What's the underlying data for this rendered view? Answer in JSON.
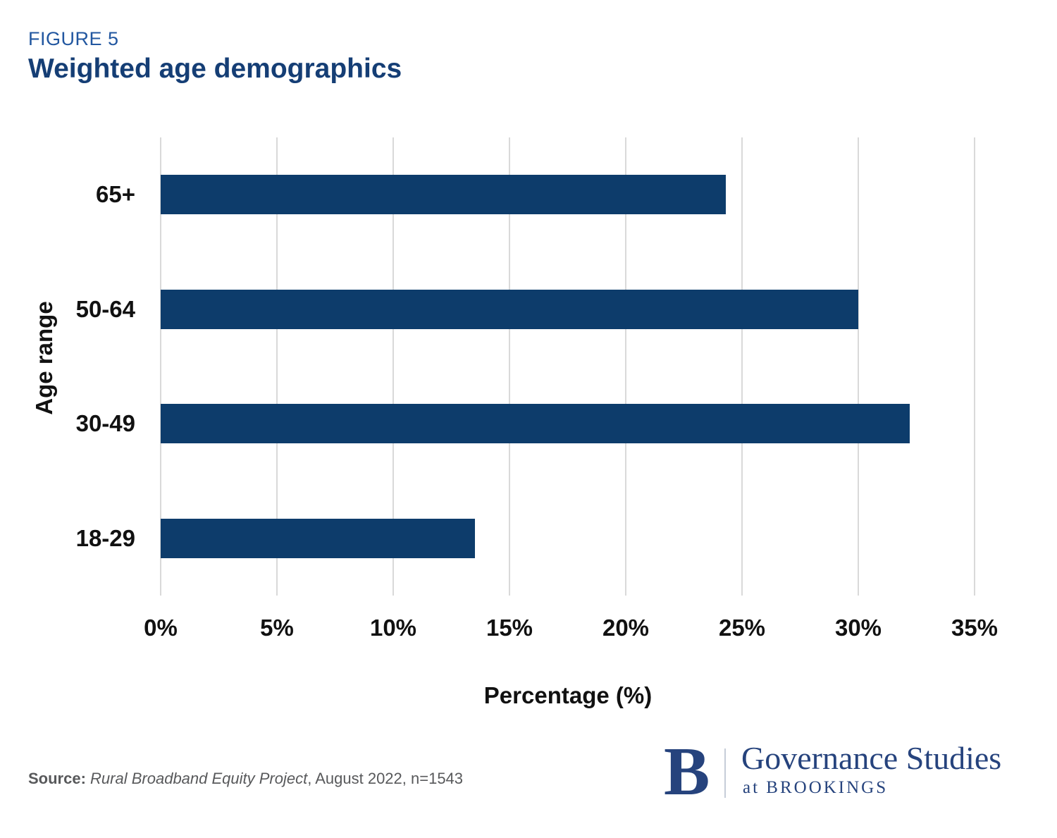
{
  "page": {
    "figure_label": "FIGURE 5",
    "title": "Weighted age demographics"
  },
  "chart_data": {
    "type": "bar",
    "orientation": "horizontal",
    "title": "Weighted age demographics",
    "categories": [
      "65+",
      "50-64",
      "30-49",
      "18-29"
    ],
    "values": [
      24.3,
      30.0,
      32.2,
      13.5
    ],
    "xlabel": "Percentage (%)",
    "ylabel": "Age range",
    "xlim": [
      0,
      35
    ],
    "xtick_labels": [
      "0%",
      "5%",
      "10%",
      "15%",
      "20%",
      "25%",
      "30%",
      "35%"
    ],
    "grid": "vertical",
    "legend": "none",
    "bar_color": "#0d3c6b"
  },
  "source": {
    "label": "Source:",
    "study": "Rural Broadband Equity Project",
    "detail": ", August 2022, n=1543"
  },
  "logo": {
    "monogram": "B",
    "org": "Governance Studies",
    "suborg": "at BROOKINGS"
  },
  "colors": {
    "figure_label": "#2257a0",
    "title": "#153e75",
    "bar": "#0d3c6b",
    "gridline": "#d9d9d9",
    "axis_text": "#111111",
    "source_text": "#58595b",
    "logo_navy": "#26437d"
  }
}
